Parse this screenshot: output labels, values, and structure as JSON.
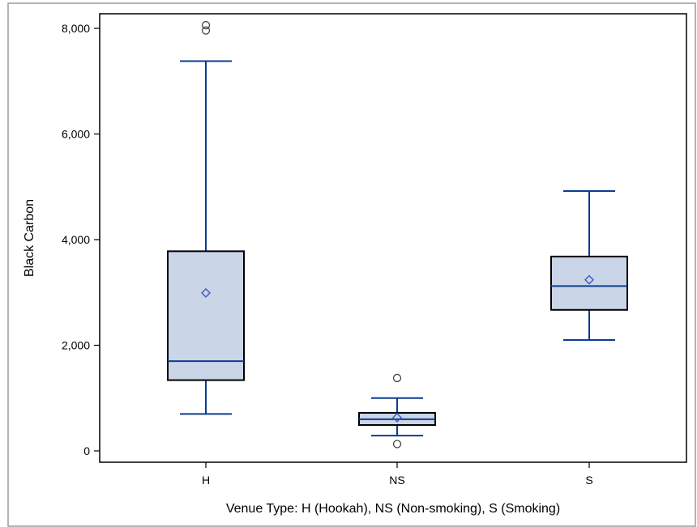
{
  "chart_data": {
    "type": "boxplot",
    "xlabel": "Venue Type: H (Hookah), NS (Non-smoking), S (Smoking)",
    "ylabel": "Black Carbon",
    "ylim": [
      -200,
      8300
    ],
    "yticks": [
      0,
      2000,
      4000,
      6000,
      8000
    ],
    "ytick_labels": [
      "0",
      "2,000",
      "4,000",
      "6,000",
      "8,000"
    ],
    "grid": false,
    "legend": "none",
    "categories": [
      "H",
      "NS",
      "S"
    ],
    "boxes": [
      {
        "category": "H",
        "whisker_low": 700,
        "q1": 1340,
        "median": 1700,
        "q3": 3780,
        "whisker_high": 7380,
        "mean": 2990,
        "outliers": [
          7960,
          8060
        ]
      },
      {
        "category": "NS",
        "whisker_low": 290,
        "q1": 490,
        "median": 600,
        "q3": 720,
        "whisker_high": 1000,
        "mean": 630,
        "outliers": [
          130,
          1380
        ]
      },
      {
        "category": "S",
        "whisker_low": 2100,
        "q1": 2670,
        "median": 3120,
        "q3": 3680,
        "whisker_high": 4920,
        "mean": 3240,
        "outliers": []
      }
    ],
    "colors": {
      "box_fill": "#cbd5e8",
      "box_border": "#000000",
      "whisker": "#0b3d91",
      "median": "#0b3d91",
      "mean_marker": "#3a5bbf",
      "outlier": "#444444",
      "axis": "#000000",
      "frame": "#9a9a9a"
    }
  }
}
